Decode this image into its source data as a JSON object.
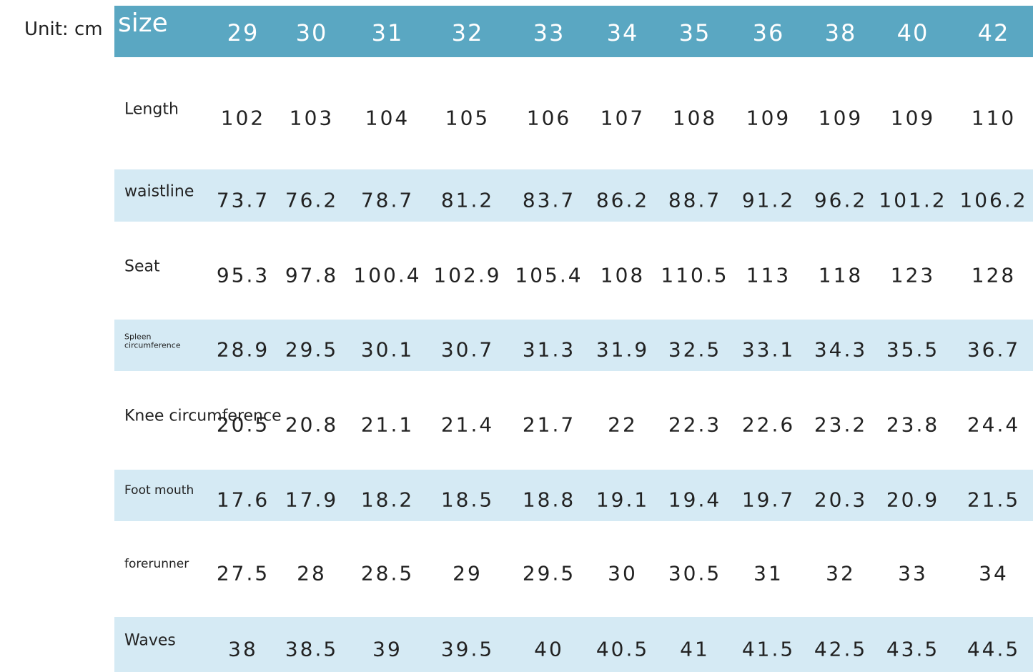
{
  "unit": "Unit: cm",
  "table": {
    "header": [
      "size",
      "29",
      "30",
      "31",
      "32",
      "33",
      "34",
      "35",
      "36",
      "38",
      "40",
      "42"
    ],
    "rows": [
      {
        "label": "Length",
        "values": [
          "102",
          "103",
          "104",
          "105",
          "106",
          "107",
          "108",
          "109",
          "109",
          "109",
          "110"
        ]
      },
      {
        "label": "waistline",
        "values": [
          "73.7",
          "76.2",
          "78.7",
          "81.2",
          "83.7",
          "86.2",
          "88.7",
          "91.2",
          "96.2",
          "101.2",
          "106.2"
        ]
      },
      {
        "label": "Seat",
        "values": [
          "95.3",
          "97.8",
          "100.4",
          "102.9",
          "105.4",
          "108",
          "110.5",
          "113",
          "118",
          "123",
          "128"
        ]
      },
      {
        "label": "Spleen circumference",
        "values": [
          "28.9",
          "29.5",
          "30.1",
          "30.7",
          "31.3",
          "31.9",
          "32.5",
          "33.1",
          "34.3",
          "35.5",
          "36.7"
        ]
      },
      {
        "label": "Knee circumference",
        "values": [
          "20.5",
          "20.8",
          "21.1",
          "21.4",
          "21.7",
          "22",
          "22.3",
          "22.6",
          "23.2",
          "23.8",
          "24.4"
        ]
      },
      {
        "label": "Foot mouth",
        "values": [
          "17.6",
          "17.9",
          "18.2",
          "18.5",
          "18.8",
          "19.1",
          "19.4",
          "19.7",
          "20.3",
          "20.9",
          "21.5"
        ]
      },
      {
        "label": "forerunner",
        "values": [
          "27.5",
          "28",
          "28.5",
          "29",
          "29.5",
          "30",
          "30.5",
          "31",
          "32",
          "33",
          "34"
        ]
      },
      {
        "label": "Waves",
        "values": [
          "38",
          "38.5",
          "39",
          "39.5",
          "40",
          "40.5",
          "41",
          "41.5",
          "42.5",
          "43.5",
          "44.5"
        ]
      }
    ]
  }
}
